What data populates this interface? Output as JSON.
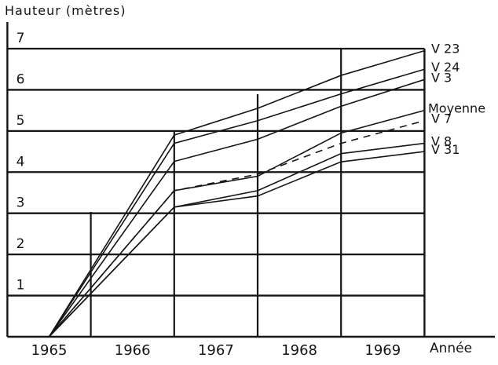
{
  "chart_data": {
    "type": "line",
    "title": "Hauteur (mètres)",
    "y_axis_title": "Hauteur (mètres)",
    "x_axis_title": "Année",
    "x_ticks": [
      "1965",
      "1966",
      "1967",
      "1968",
      "1969"
    ],
    "y_ticks": [
      1,
      2,
      3,
      4,
      5,
      6,
      7
    ],
    "ylim": [
      0,
      7
    ],
    "xlim_years": [
      1964.5,
      1969.5
    ],
    "grid": true,
    "legend_position": "right-edge-at-line-endpoints",
    "ink_color": "#151515",
    "background": "#ffffff",
    "x_unit": "year",
    "y_unit": "metres",
    "series": [
      {
        "name": "V 23",
        "style": "solid",
        "points": [
          [
            1965,
            0
          ],
          [
            1966.5,
            4.9
          ],
          [
            1967.5,
            5.55
          ],
          [
            1968.5,
            6.35
          ],
          [
            1969.5,
            6.95
          ]
        ]
      },
      {
        "name": "V 24",
        "style": "solid",
        "points": [
          [
            1965,
            0
          ],
          [
            1966.5,
            4.7
          ],
          [
            1967.5,
            5.25
          ],
          [
            1968.5,
            5.9
          ],
          [
            1969.5,
            6.5
          ]
        ]
      },
      {
        "name": "V 3",
        "style": "solid",
        "points": [
          [
            1965,
            0
          ],
          [
            1966.5,
            4.26
          ],
          [
            1967.5,
            4.8
          ],
          [
            1968.5,
            5.6
          ],
          [
            1969.5,
            6.25
          ]
        ]
      },
      {
        "name": "Moyenne",
        "style": "solid",
        "points": [
          [
            1965,
            0
          ],
          [
            1966.5,
            3.55
          ],
          [
            1967.5,
            3.9
          ],
          [
            1968.5,
            4.95
          ],
          [
            1969.5,
            5.5
          ]
        ]
      },
      {
        "name": "V 7",
        "style": "dashed",
        "points": [
          [
            1965,
            0
          ],
          [
            1966.5,
            3.55
          ],
          [
            1967.5,
            3.95
          ],
          [
            1968.5,
            4.7
          ],
          [
            1969.5,
            5.25
          ]
        ]
      },
      {
        "name": "V 8",
        "style": "solid",
        "points": [
          [
            1965,
            0
          ],
          [
            1966.5,
            3.15
          ],
          [
            1967.5,
            3.55
          ],
          [
            1968.5,
            4.45
          ],
          [
            1969.5,
            4.7
          ]
        ]
      },
      {
        "name": "V 31",
        "style": "solid",
        "points": [
          [
            1965,
            0
          ],
          [
            1966.5,
            3.15
          ],
          [
            1967.5,
            3.42
          ],
          [
            1968.5,
            4.25
          ],
          [
            1969.5,
            4.5
          ]
        ]
      }
    ]
  }
}
